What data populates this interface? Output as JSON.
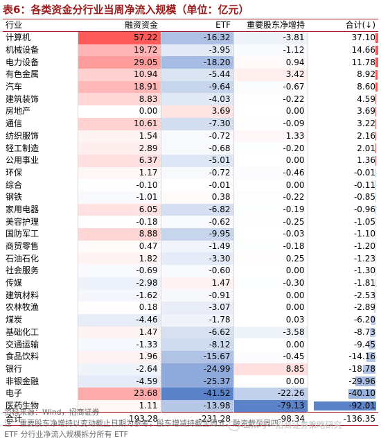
{
  "title": "表6：各类资金分行业当周净流入规模（单位：亿元）",
  "columns": [
    "行业",
    "融资资金",
    "ETF",
    "重要股东净增持",
    "合计(↓)"
  ],
  "rows": [
    {
      "name": "计算机",
      "financing": "57.22",
      "etf": "-16.32",
      "holder": "-3.81",
      "total": "37.10"
    },
    {
      "name": "机械设备",
      "financing": "19.72",
      "etf": "-3.95",
      "holder": "-1.12",
      "total": "14.66"
    },
    {
      "name": "电力设备",
      "financing": "29.05",
      "etf": "-18.20",
      "holder": "0.94",
      "total": "11.78"
    },
    {
      "name": "有色金属",
      "financing": "10.94",
      "etf": "-5.44",
      "holder": "3.42",
      "total": "8.92"
    },
    {
      "name": "汽车",
      "financing": "18.91",
      "etf": "-9.64",
      "holder": "-0.67",
      "total": "8.60"
    },
    {
      "name": "建筑装饰",
      "financing": "8.83",
      "etf": "-4.03",
      "holder": "-0.22",
      "total": "4.59"
    },
    {
      "name": "房地产",
      "financing": "0.00",
      "etf": "3.69",
      "holder": "0.00",
      "total": "3.69"
    },
    {
      "name": "通信",
      "financing": "10.61",
      "etf": "-7.30",
      "holder": "-0.09",
      "total": "3.22"
    },
    {
      "name": "纺织服饰",
      "financing": "1.54",
      "etf": "-0.72",
      "holder": "1.33",
      "total": "2.16"
    },
    {
      "name": "轻工制造",
      "financing": "2.89",
      "etf": "-0.68",
      "holder": "-0.20",
      "total": "2.01"
    },
    {
      "name": "公用事业",
      "financing": "6.37",
      "etf": "-5.01",
      "holder": "0.00",
      "total": "1.36"
    },
    {
      "name": "环保",
      "financing": "1.17",
      "etf": "-0.72",
      "holder": "-0.46",
      "total": "-0.01"
    },
    {
      "name": "综合",
      "financing": "-0.10",
      "etf": "-0.01",
      "holder": "0.00",
      "total": "-0.11"
    },
    {
      "name": "钢铁",
      "financing": "-1.01",
      "etf": "0.38",
      "holder": "-0.22",
      "total": "-0.85"
    },
    {
      "name": "家用电器",
      "financing": "6.05",
      "etf": "-6.82",
      "holder": "-0.19",
      "total": "-0.96"
    },
    {
      "name": "美容护理",
      "financing": "-0.18",
      "etf": "-0.62",
      "holder": "-0.25",
      "total": "-1.05"
    },
    {
      "name": "国防军工",
      "financing": "8.88",
      "etf": "-9.95",
      "holder": "-0.03",
      "total": "-1.10"
    },
    {
      "name": "商贸零售",
      "financing": "0.47",
      "etf": "-1.49",
      "holder": "-0.18",
      "total": "-1.20"
    },
    {
      "name": "石油石化",
      "financing": "1.82",
      "etf": "-3.30",
      "holder": "0.25",
      "total": "-1.23"
    },
    {
      "name": "社会服务",
      "financing": "-0.69",
      "etf": "-0.60",
      "holder": "0.00",
      "total": "-1.30"
    },
    {
      "name": "传媒",
      "financing": "-2.98",
      "etf": "1.47",
      "holder": "-0.30",
      "total": "-1.81"
    },
    {
      "name": "建筑材料",
      "financing": "-1.62",
      "etf": "-0.91",
      "holder": "0.00",
      "total": "-2.53"
    },
    {
      "name": "农林牧渔",
      "financing": "0.18",
      "etf": "-3.07",
      "holder": "0.00",
      "total": "-2.89"
    },
    {
      "name": "煤炭",
      "financing": "-4.46",
      "etf": "-1.78",
      "holder": "0.03",
      "total": "-6.20"
    },
    {
      "name": "基础化工",
      "financing": "1.47",
      "etf": "-6.62",
      "holder": "-3.58",
      "total": "-8.73"
    },
    {
      "name": "交通运输",
      "financing": "-1.33",
      "etf": "-8.12",
      "holder": "0.00",
      "total": "-9.45"
    },
    {
      "name": "食品饮料",
      "financing": "1.96",
      "etf": "-15.67",
      "holder": "-0.45",
      "total": "-14.16"
    },
    {
      "name": "银行",
      "financing": "-2.64",
      "etf": "-24.99",
      "holder": "8.85",
      "total": "-18.78"
    },
    {
      "name": "非银金融",
      "financing": "-4.59",
      "etf": "-25.37",
      "holder": "0.00",
      "total": "-29.96"
    },
    {
      "name": "电子",
      "financing": "23.68",
      "etf": "-41.52",
      "holder": "-22.26",
      "total": "-40.10"
    },
    {
      "name": "医药生物",
      "financing": "1.11",
      "etf": "-13.98",
      "holder": "-79.13",
      "total": "-92.01"
    }
  ],
  "sum_row": {
    "name": "合计",
    "financing": "193.28",
    "etf": "-231.28",
    "holder": "-98.34",
    "total": "-136.35"
  },
  "source": "资料来源：Wind，招商证券",
  "note1": "注：重要股东净增持以变动截止日期为参考；股东增减持截至周五，融资截至周四",
  "note2": "ETF 分行业净流入规模拆分所有 ETF",
  "watermark": "公众号 · 招商证券策略研究",
  "colors": {
    "title": "#9c1b1b",
    "pos_max": "#f15b5b",
    "neg_max": "#5b83c9",
    "bar": "#5b83c9"
  }
}
